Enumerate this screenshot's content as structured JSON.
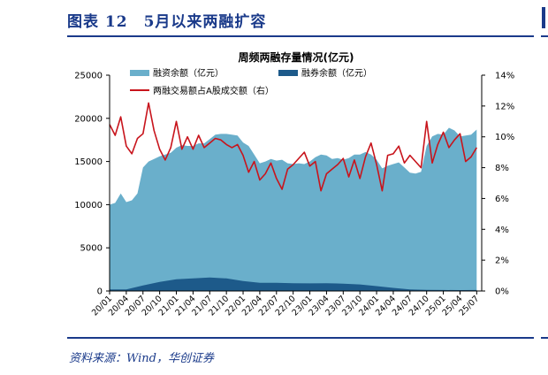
{
  "figure": {
    "title": "图表 12　5月以来两融扩容",
    "source": "资料来源：Wind，华创证券"
  },
  "colors": {
    "financing": "#6aafcb",
    "short": "#1d5a8a",
    "ratio": "#c8141c",
    "accent": "#1a3a8a"
  },
  "chart_data": {
    "type": "area",
    "title": "周频两融存量情况(亿元)",
    "y_left": {
      "ylim": [
        0,
        25000
      ],
      "ticks": [
        "0",
        "5000",
        "10000",
        "15000",
        "20000",
        "25000"
      ]
    },
    "y_right": {
      "ylim": [
        0,
        14
      ],
      "unit": "%",
      "ticks": [
        "0%",
        "2%",
        "4%",
        "6%",
        "8%",
        "10%",
        "12%",
        "14%"
      ]
    },
    "x_ticks": [
      "20/01",
      "20/04",
      "20/07",
      "20/10",
      "21/01",
      "21/04",
      "21/07",
      "21/10",
      "22/01",
      "22/04",
      "22/07",
      "22/10",
      "23/01",
      "23/04",
      "23/07",
      "23/10",
      "24/01",
      "24/04",
      "24/07",
      "24/10",
      "25/01",
      "25/04",
      "25/07"
    ],
    "legend": [
      "融资余额（亿元）",
      "融券余额（亿元）",
      "两融交易额占A股成交额（右）"
    ],
    "legend_placement": "top-left",
    "grid": false,
    "series": [
      {
        "name": "融资余额（亿元）",
        "kind": "area",
        "axis": "left",
        "points": [
          [
            "20/01",
            10000
          ],
          [
            "20/02",
            10200
          ],
          [
            "20/03",
            11300
          ],
          [
            "20/04",
            10300
          ],
          [
            "20/05",
            10500
          ],
          [
            "20/06",
            11300
          ],
          [
            "20/07",
            14300
          ],
          [
            "20/08",
            15000
          ],
          [
            "20/09",
            15300
          ],
          [
            "20/10",
            15600
          ],
          [
            "20/11",
            15800
          ],
          [
            "20/12",
            16000
          ],
          [
            "21/01",
            16600
          ],
          [
            "21/02",
            16900
          ],
          [
            "21/03",
            16800
          ],
          [
            "21/04",
            16800
          ],
          [
            "21/05",
            17100
          ],
          [
            "21/06",
            17100
          ],
          [
            "21/07",
            17600
          ],
          [
            "21/08",
            18100
          ],
          [
            "21/09",
            18200
          ],
          [
            "21/10",
            18200
          ],
          [
            "21/11",
            18100
          ],
          [
            "21/12",
            18000
          ],
          [
            "22/01",
            17200
          ],
          [
            "22/02",
            16800
          ],
          [
            "22/03",
            15800
          ],
          [
            "22/04",
            14800
          ],
          [
            "22/05",
            15000
          ],
          [
            "22/06",
            15300
          ],
          [
            "22/07",
            15100
          ],
          [
            "22/08",
            15200
          ],
          [
            "22/09",
            14800
          ],
          [
            "22/10",
            14700
          ],
          [
            "22/11",
            14800
          ],
          [
            "22/12",
            14700
          ],
          [
            "23/01",
            15000
          ],
          [
            "23/02",
            15500
          ],
          [
            "23/03",
            15800
          ],
          [
            "23/04",
            15700
          ],
          [
            "23/05",
            15300
          ],
          [
            "23/06",
            15400
          ],
          [
            "23/07",
            15200
          ],
          [
            "23/08",
            15400
          ],
          [
            "23/09",
            15800
          ],
          [
            "23/10",
            15800
          ],
          [
            "23/11",
            16100
          ],
          [
            "23/12",
            15800
          ],
          [
            "24/01",
            15200
          ],
          [
            "24/02",
            14200
          ],
          [
            "24/03",
            14500
          ],
          [
            "24/04",
            14700
          ],
          [
            "24/05",
            14900
          ],
          [
            "24/06",
            14300
          ],
          [
            "24/07",
            13700
          ],
          [
            "24/08",
            13600
          ],
          [
            "24/09",
            13800
          ],
          [
            "24/10",
            16800
          ],
          [
            "24/11",
            17900
          ],
          [
            "24/12",
            18200
          ],
          [
            "25/01",
            18100
          ],
          [
            "25/02",
            18900
          ],
          [
            "25/03",
            18600
          ],
          [
            "25/04",
            17900
          ],
          [
            "25/05",
            18000
          ],
          [
            "25/06",
            18100
          ],
          [
            "25/07",
            18700
          ]
        ]
      },
      {
        "name": "融券余额（亿元）",
        "kind": "area",
        "axis": "left",
        "points": [
          [
            "20/01",
            170
          ],
          [
            "20/04",
            170
          ],
          [
            "20/07",
            650
          ],
          [
            "20/10",
            1050
          ],
          [
            "21/01",
            1350
          ],
          [
            "21/04",
            1450
          ],
          [
            "21/07",
            1560
          ],
          [
            "21/10",
            1450
          ],
          [
            "22/01",
            1150
          ],
          [
            "22/04",
            950
          ],
          [
            "22/07",
            950
          ],
          [
            "22/10",
            900
          ],
          [
            "23/01",
            880
          ],
          [
            "23/04",
            900
          ],
          [
            "23/07",
            850
          ],
          [
            "23/10",
            760
          ],
          [
            "24/01",
            560
          ],
          [
            "24/04",
            360
          ],
          [
            "24/07",
            180
          ],
          [
            "24/10",
            130
          ],
          [
            "25/01",
            110
          ],
          [
            "25/04",
            100
          ],
          [
            "25/07",
            110
          ]
        ]
      },
      {
        "name": "两融交易额占A股成交额（右）",
        "kind": "line",
        "axis": "right",
        "points": [
          [
            "20/01",
            10.8
          ],
          [
            "20/02",
            10.1
          ],
          [
            "20/03",
            11.3
          ],
          [
            "20/04",
            9.4
          ],
          [
            "20/05",
            8.9
          ],
          [
            "20/06",
            9.9
          ],
          [
            "20/07",
            10.2
          ],
          [
            "20/08",
            12.2
          ],
          [
            "20/09",
            10.4
          ],
          [
            "20/10",
            9.2
          ],
          [
            "20/11",
            8.5
          ],
          [
            "20/12",
            9.3
          ],
          [
            "21/01",
            11.0
          ],
          [
            "21/02",
            9.2
          ],
          [
            "21/03",
            10.0
          ],
          [
            "21/04",
            9.2
          ],
          [
            "21/05",
            10.1
          ],
          [
            "21/06",
            9.3
          ],
          [
            "21/07",
            9.6
          ],
          [
            "21/08",
            9.9
          ],
          [
            "21/09",
            9.8
          ],
          [
            "21/10",
            9.5
          ],
          [
            "21/11",
            9.3
          ],
          [
            "21/12",
            9.5
          ],
          [
            "22/01",
            8.8
          ],
          [
            "22/02",
            7.7
          ],
          [
            "22/03",
            8.4
          ],
          [
            "22/04",
            7.2
          ],
          [
            "22/05",
            7.6
          ],
          [
            "22/06",
            8.3
          ],
          [
            "22/07",
            7.3
          ],
          [
            "22/08",
            6.6
          ],
          [
            "22/09",
            7.9
          ],
          [
            "22/10",
            8.2
          ],
          [
            "22/11",
            8.6
          ],
          [
            "22/12",
            9.0
          ],
          [
            "23/01",
            8.1
          ],
          [
            "23/02",
            8.4
          ],
          [
            "23/03",
            6.5
          ],
          [
            "23/04",
            7.6
          ],
          [
            "23/05",
            7.9
          ],
          [
            "23/06",
            8.2
          ],
          [
            "23/07",
            8.6
          ],
          [
            "23/08",
            7.4
          ],
          [
            "23/09",
            8.5
          ],
          [
            "23/10",
            7.3
          ],
          [
            "23/11",
            8.7
          ],
          [
            "23/12",
            9.6
          ],
          [
            "24/01",
            8.2
          ],
          [
            "24/02",
            6.5
          ],
          [
            "24/03",
            8.8
          ],
          [
            "24/04",
            8.9
          ],
          [
            "24/05",
            9.4
          ],
          [
            "24/06",
            8.3
          ],
          [
            "24/07",
            8.8
          ],
          [
            "24/08",
            8.4
          ],
          [
            "24/09",
            8.0
          ],
          [
            "24/10",
            11.0
          ],
          [
            "24/11",
            8.3
          ],
          [
            "24/12",
            9.5
          ],
          [
            "25/01",
            10.3
          ],
          [
            "25/02",
            9.3
          ],
          [
            "25/03",
            9.8
          ],
          [
            "25/04",
            10.2
          ],
          [
            "25/05",
            8.4
          ],
          [
            "25/06",
            8.7
          ],
          [
            "25/07",
            9.3
          ]
        ]
      }
    ]
  }
}
